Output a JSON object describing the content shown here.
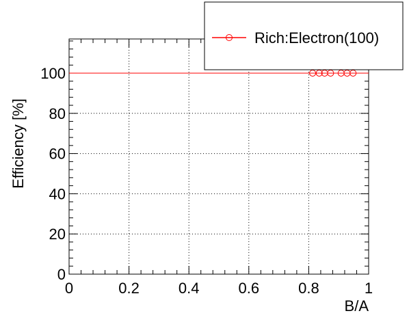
{
  "chart_data": {
    "type": "line",
    "title": "",
    "xlabel": "B/A",
    "ylabel": "Efficiency [%]",
    "xlim": [
      0,
      1
    ],
    "ylim": [
      0,
      117
    ],
    "x_ticks": [
      0,
      0.2,
      0.4,
      0.6,
      0.8,
      1
    ],
    "x_tick_labels": [
      "0",
      "0.2",
      "0.4",
      "0.6",
      "0.8",
      "1"
    ],
    "y_ticks": [
      0,
      20,
      40,
      60,
      80,
      100
    ],
    "y_tick_labels": [
      "0",
      "20",
      "40",
      "60",
      "80",
      "100"
    ],
    "grid": true,
    "grid_style": "dotted",
    "legend_position": "top-right",
    "series": [
      {
        "name": "Rich:Electron(100)",
        "color": "#ff0000",
        "marker": "open-circle",
        "x": [
          0.813,
          0.835,
          0.853,
          0.873,
          0.908,
          0.928,
          0.948
        ],
        "y": [
          100,
          100,
          100,
          100,
          100,
          100,
          100
        ]
      }
    ],
    "reference_line": {
      "y": 100,
      "color": "#ff0000"
    }
  }
}
